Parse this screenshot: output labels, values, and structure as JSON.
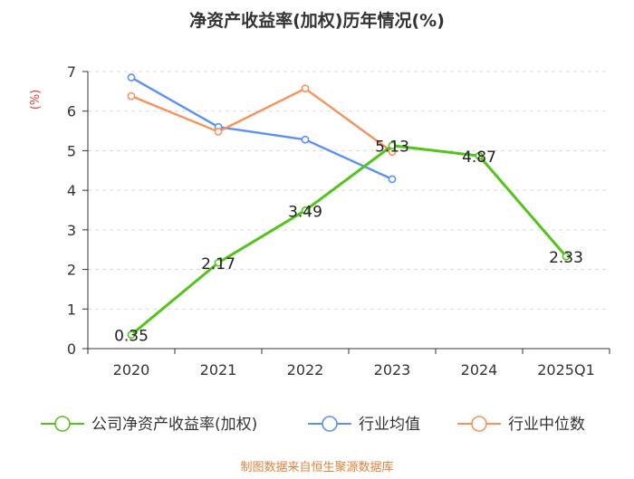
{
  "chart_data": {
    "type": "line",
    "title": "净资产收益率(加权)历年情况(%)",
    "ylabel": "(%)",
    "xlabel": "",
    "categories": [
      "2020",
      "2021",
      "2022",
      "2023",
      "2024",
      "2025Q1"
    ],
    "ylim": [
      0,
      7
    ],
    "yticks": [
      0,
      1,
      2,
      3,
      4,
      5,
      6,
      7
    ],
    "grid": true,
    "legend_position": "bottom",
    "series": [
      {
        "name": "公司净资产收益率(加权)",
        "color": "#52c41a",
        "values": [
          0.35,
          2.17,
          3.49,
          5.13,
          4.87,
          2.33
        ],
        "labels": [
          "0.35",
          "2.17",
          "3.49",
          "5.13",
          "4.87",
          "2.33"
        ]
      },
      {
        "name": "行业均值",
        "color": "#5b8ff9",
        "values": [
          6.85,
          5.6,
          5.28,
          4.28,
          null,
          null
        ]
      },
      {
        "name": "行业中位数",
        "color": "#f7925a",
        "values": [
          6.38,
          5.48,
          6.57,
          4.97,
          null,
          null
        ]
      }
    ]
  },
  "footer": {
    "source": "制图数据来自恒生聚源数据库",
    "source_color": "#e2823c"
  }
}
